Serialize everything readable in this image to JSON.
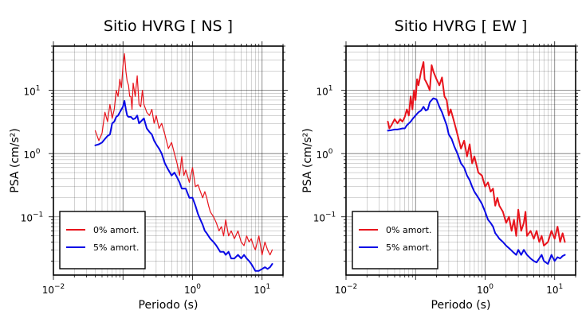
{
  "chart_data": [
    {
      "type": "line",
      "title": "Sitio HVRG [ NS ]",
      "xlabel": "Periodo (s)",
      "ylabel": "PSA (cm/s²)",
      "xscale": "log",
      "yscale": "log",
      "xlim": [
        0.01,
        20
      ],
      "ylim": [
        0.012,
        50
      ],
      "grid": true,
      "legend_position": "bottom-left",
      "x_ticks": [
        {
          "value": 0.01,
          "mant": "10",
          "exp": "−2"
        },
        {
          "value": 1,
          "mant": "10",
          "exp": "0"
        },
        {
          "value": 10,
          "mant": "10",
          "exp": "1"
        }
      ],
      "y_ticks": [
        {
          "value": 0.1,
          "mant": "10",
          "exp": "−1"
        },
        {
          "value": 1,
          "mant": "10",
          "exp": "0"
        },
        {
          "value": 10,
          "mant": "10",
          "exp": "1"
        }
      ],
      "x_tick_labels": [
        "10⁻²",
        "10⁰",
        "10¹"
      ],
      "y_tick_labels": [
        "10⁻¹",
        "10⁰",
        "10¹"
      ],
      "series": [
        {
          "name": "0% amort.",
          "color": "#e8141c",
          "width": 1.2,
          "x": [
            0.04,
            0.045,
            0.05,
            0.055,
            0.06,
            0.065,
            0.07,
            0.075,
            0.08,
            0.085,
            0.09,
            0.095,
            0.1,
            0.105,
            0.11,
            0.115,
            0.12,
            0.125,
            0.13,
            0.135,
            0.14,
            0.15,
            0.16,
            0.17,
            0.18,
            0.19,
            0.2,
            0.22,
            0.24,
            0.26,
            0.28,
            0.3,
            0.33,
            0.36,
            0.4,
            0.45,
            0.5,
            0.55,
            0.6,
            0.65,
            0.7,
            0.75,
            0.8,
            0.9,
            1.0,
            1.1,
            1.2,
            1.3,
            1.4,
            1.5,
            1.6,
            1.7,
            1.8,
            2.0,
            2.2,
            2.4,
            2.6,
            2.8,
            3.0,
            3.3,
            3.6,
            4.0,
            4.5,
            5.0,
            5.5,
            6.0,
            6.5,
            7.0,
            7.5,
            8.0,
            9.0,
            10.0,
            11.0,
            12.0,
            13.0,
            14.0
          ],
          "y": [
            2.3,
            1.6,
            2.1,
            4.5,
            3.2,
            6.0,
            3.6,
            5.0,
            10.0,
            8.0,
            15.0,
            11.0,
            24.0,
            38.0,
            20.0,
            14.0,
            12.0,
            8.0,
            8.0,
            5.0,
            13.0,
            8.0,
            17.0,
            6.0,
            5.5,
            10.0,
            6.0,
            4.5,
            4.0,
            5.0,
            3.0,
            4.0,
            2.5,
            3.0,
            2.0,
            1.2,
            1.5,
            1.0,
            0.7,
            0.45,
            0.9,
            0.45,
            0.55,
            0.35,
            0.6,
            0.3,
            0.32,
            0.25,
            0.2,
            0.25,
            0.2,
            0.15,
            0.12,
            0.1,
            0.08,
            0.06,
            0.07,
            0.05,
            0.09,
            0.05,
            0.06,
            0.045,
            0.06,
            0.04,
            0.035,
            0.05,
            0.04,
            0.045,
            0.035,
            0.03,
            0.05,
            0.025,
            0.04,
            0.03,
            0.025,
            0.03
          ]
        },
        {
          "name": "5% amort.",
          "color": "#0a0ae6",
          "width": 2.0,
          "x": [
            0.04,
            0.045,
            0.05,
            0.055,
            0.06,
            0.065,
            0.07,
            0.075,
            0.08,
            0.085,
            0.09,
            0.095,
            0.1,
            0.105,
            0.11,
            0.115,
            0.12,
            0.13,
            0.14,
            0.15,
            0.16,
            0.17,
            0.18,
            0.2,
            0.22,
            0.24,
            0.26,
            0.28,
            0.3,
            0.33,
            0.36,
            0.4,
            0.45,
            0.5,
            0.55,
            0.6,
            0.65,
            0.7,
            0.8,
            0.9,
            1.0,
            1.1,
            1.2,
            1.3,
            1.4,
            1.5,
            1.6,
            1.8,
            2.0,
            2.2,
            2.5,
            2.8,
            3.0,
            3.3,
            3.6,
            4.0,
            4.5,
            5.0,
            5.5,
            6.0,
            6.5,
            7.0,
            8.0,
            9.0,
            10.0,
            11.0,
            12.0,
            13.0,
            14.0
          ],
          "y": [
            1.35,
            1.4,
            1.5,
            1.7,
            1.9,
            2.0,
            3.0,
            3.2,
            3.8,
            4.0,
            4.5,
            5.0,
            5.5,
            6.8,
            5.0,
            4.0,
            3.8,
            3.8,
            3.5,
            3.6,
            4.0,
            3.0,
            3.2,
            3.6,
            2.5,
            2.2,
            2.0,
            1.6,
            1.4,
            1.2,
            1.0,
            0.7,
            0.55,
            0.45,
            0.5,
            0.42,
            0.35,
            0.28,
            0.28,
            0.2,
            0.2,
            0.15,
            0.11,
            0.09,
            0.075,
            0.06,
            0.055,
            0.045,
            0.04,
            0.035,
            0.028,
            0.028,
            0.025,
            0.028,
            0.022,
            0.022,
            0.025,
            0.022,
            0.025,
            0.022,
            0.02,
            0.018,
            0.014,
            0.014,
            0.015,
            0.016,
            0.015,
            0.016,
            0.018
          ]
        }
      ]
    },
    {
      "type": "line",
      "title": "Sitio HVRG [ EW ]",
      "xlabel": "Periodo (s)",
      "ylabel": "PSA (cm/s²)",
      "xscale": "log",
      "yscale": "log",
      "xlim": [
        0.01,
        20
      ],
      "ylim": [
        0.012,
        50
      ],
      "grid": true,
      "legend_position": "bottom-left",
      "x_ticks": [
        {
          "value": 0.01,
          "mant": "10",
          "exp": "−2"
        },
        {
          "value": 1,
          "mant": "10",
          "exp": "0"
        },
        {
          "value": 10,
          "mant": "10",
          "exp": "1"
        }
      ],
      "y_ticks": [
        {
          "value": 0.1,
          "mant": "10",
          "exp": "−1"
        },
        {
          "value": 1,
          "mant": "10",
          "exp": "0"
        },
        {
          "value": 10,
          "mant": "10",
          "exp": "1"
        }
      ],
      "x_tick_labels": [
        "10⁻²",
        "10⁰",
        "10¹"
      ],
      "y_tick_labels": [
        "10⁻¹",
        "10⁰",
        "10¹"
      ],
      "series": [
        {
          "name": "0% amort.",
          "color": "#e8141c",
          "width": 2.0,
          "x": [
            0.04,
            0.042,
            0.045,
            0.05,
            0.055,
            0.06,
            0.065,
            0.07,
            0.075,
            0.08,
            0.085,
            0.09,
            0.095,
            0.1,
            0.105,
            0.11,
            0.12,
            0.13,
            0.135,
            0.14,
            0.15,
            0.16,
            0.17,
            0.18,
            0.2,
            0.22,
            0.24,
            0.26,
            0.28,
            0.3,
            0.32,
            0.35,
            0.38,
            0.4,
            0.45,
            0.5,
            0.55,
            0.6,
            0.65,
            0.7,
            0.8,
            0.9,
            1.0,
            1.1,
            1.2,
            1.3,
            1.4,
            1.5,
            1.6,
            1.8,
            2.0,
            2.2,
            2.4,
            2.6,
            2.8,
            3.0,
            3.3,
            3.6,
            3.8,
            4.0,
            4.5,
            5.0,
            5.5,
            6.0,
            6.5,
            7.0,
            8.0,
            9.0,
            10.0,
            11.0,
            12.0,
            13.0,
            14.0
          ],
          "y": [
            3.2,
            2.5,
            2.8,
            3.5,
            3.0,
            3.5,
            3.2,
            3.8,
            5.0,
            4.0,
            8.0,
            5.0,
            10.0,
            7.0,
            15.0,
            12.0,
            20.0,
            28.0,
            15.0,
            14.0,
            12.0,
            10.0,
            25.0,
            20.0,
            15.0,
            12.0,
            16.0,
            8.0,
            7.0,
            4.0,
            5.0,
            3.5,
            2.5,
            2.0,
            1.2,
            1.6,
            0.9,
            1.4,
            0.7,
            0.9,
            0.5,
            0.45,
            0.3,
            0.35,
            0.25,
            0.28,
            0.15,
            0.2,
            0.15,
            0.12,
            0.08,
            0.1,
            0.06,
            0.09,
            0.05,
            0.13,
            0.06,
            0.08,
            0.12,
            0.05,
            0.06,
            0.045,
            0.06,
            0.04,
            0.05,
            0.035,
            0.04,
            0.06,
            0.045,
            0.07,
            0.04,
            0.055,
            0.04
          ]
        },
        {
          "name": "5% amort.",
          "color": "#0a0ae6",
          "width": 2.0,
          "x": [
            0.04,
            0.045,
            0.05,
            0.055,
            0.06,
            0.065,
            0.07,
            0.075,
            0.08,
            0.085,
            0.09,
            0.1,
            0.11,
            0.12,
            0.13,
            0.14,
            0.15,
            0.16,
            0.18,
            0.2,
            0.22,
            0.24,
            0.26,
            0.28,
            0.3,
            0.33,
            0.36,
            0.4,
            0.45,
            0.5,
            0.55,
            0.6,
            0.65,
            0.7,
            0.8,
            0.9,
            1.0,
            1.1,
            1.2,
            1.3,
            1.4,
            1.5,
            1.6,
            1.8,
            2.0,
            2.2,
            2.5,
            2.8,
            3.0,
            3.3,
            3.6,
            4.0,
            4.5,
            5.0,
            5.5,
            6.0,
            6.5,
            7.0,
            8.0,
            9.0,
            10.0,
            11.0,
            12.0,
            13.0,
            14.0
          ],
          "y": [
            2.3,
            2.35,
            2.4,
            2.4,
            2.45,
            2.5,
            2.5,
            2.8,
            3.0,
            3.2,
            3.5,
            4.0,
            4.5,
            4.8,
            5.5,
            4.8,
            5.0,
            6.5,
            7.5,
            7.2,
            5.5,
            4.5,
            3.5,
            2.8,
            2.0,
            1.7,
            1.3,
            1.0,
            0.7,
            0.6,
            0.45,
            0.38,
            0.3,
            0.25,
            0.2,
            0.16,
            0.12,
            0.09,
            0.08,
            0.07,
            0.055,
            0.05,
            0.045,
            0.04,
            0.035,
            0.032,
            0.028,
            0.025,
            0.03,
            0.025,
            0.03,
            0.025,
            0.022,
            0.02,
            0.019,
            0.022,
            0.025,
            0.02,
            0.018,
            0.025,
            0.02,
            0.023,
            0.022,
            0.024,
            0.025
          ]
        }
      ]
    }
  ]
}
